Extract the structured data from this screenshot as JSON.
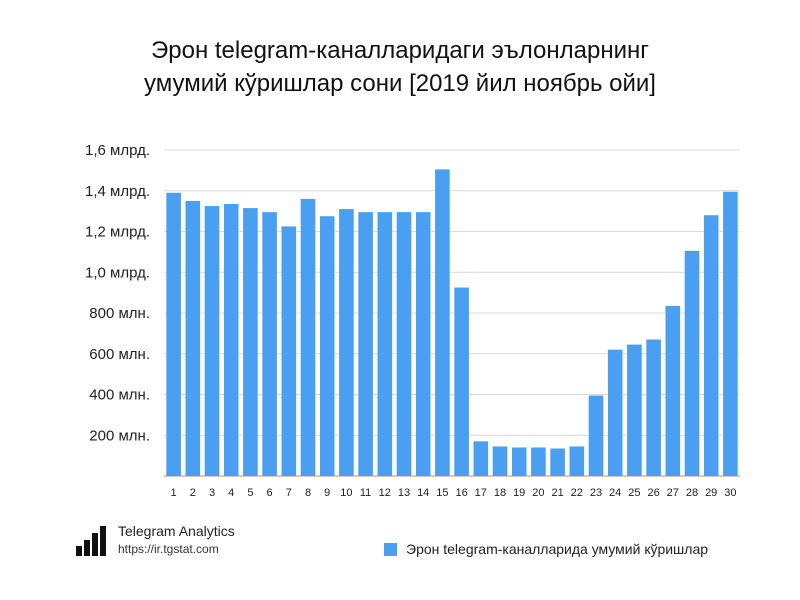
{
  "chart_data": {
    "type": "bar",
    "title": "Эрон telegram-каналларидаги эълонларнинг умумий кўришлар сони [2019 йил ноябрь ойи]",
    "title_lines": [
      "Эрон telegram-каналларидаги эълонларнинг",
      "умумий кўришлар сони [2019 йил ноябрь ойи]"
    ],
    "categories": [
      "1",
      "2",
      "3",
      "4",
      "5",
      "6",
      "7",
      "8",
      "9",
      "10",
      "11",
      "12",
      "13",
      "14",
      "15",
      "16",
      "17",
      "18",
      "19",
      "20",
      "21",
      "22",
      "23",
      "24",
      "25",
      "26",
      "27",
      "28",
      "29",
      "30"
    ],
    "series": [
      {
        "name": "Эрон telegram-каналларида умумий кўришлар",
        "color": "#4a9ff0",
        "values": [
          1390,
          1350,
          1325,
          1335,
          1315,
          1295,
          1225,
          1360,
          1275,
          1310,
          1295,
          1295,
          1295,
          1295,
          1505,
          925,
          170,
          145,
          140,
          140,
          135,
          145,
          395,
          620,
          645,
          670,
          835,
          1105,
          1280,
          1395
        ]
      }
    ],
    "units": "million views",
    "ylim": [
      0,
      1600
    ],
    "yticks": [
      200,
      400,
      600,
      800,
      1000,
      1200,
      1400,
      1600
    ],
    "ytick_labels": [
      "200 млн.",
      "400 млн.",
      "600 млн.",
      "800 млн.",
      "1,0 млрд.",
      "1,2 млрд.",
      "1,4 млрд.",
      "1,6 млрд."
    ],
    "grid": true,
    "legend": "bottom-right"
  },
  "branding": {
    "name": "Telegram Analytics",
    "url": "https://ir.tgstat.com",
    "logo_icon": "bar-chart-logo-icon"
  },
  "colors": {
    "bar": "#4a9ff0",
    "grid": "#d9d9d9",
    "axis": "#9a9a9a"
  }
}
